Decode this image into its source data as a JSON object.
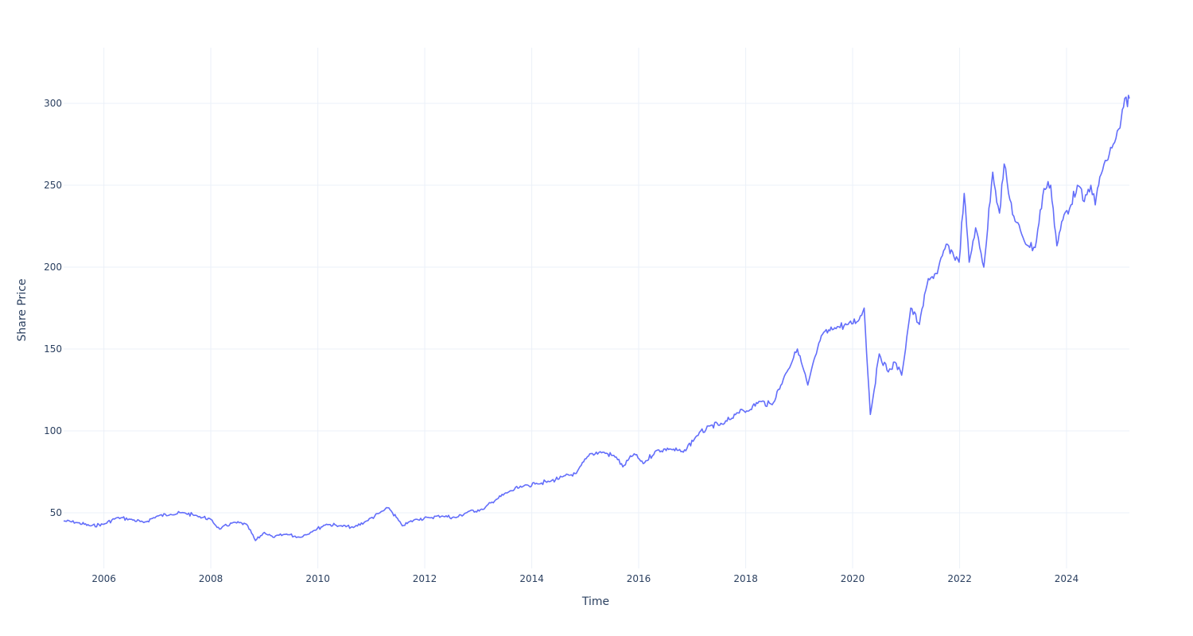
{
  "chart_data": {
    "type": "line",
    "title": "",
    "xlabel": "Time",
    "ylabel": "Share Price",
    "xlim": [
      "2005-04-01",
      "2025-03-05"
    ],
    "ylim": [
      16,
      334
    ],
    "x_ticks": [
      "2006",
      "2008",
      "2010",
      "2012",
      "2014",
      "2016",
      "2018",
      "2020",
      "2022",
      "2024"
    ],
    "y_ticks": [
      50,
      100,
      150,
      200,
      250,
      300
    ],
    "grid": true,
    "legend": "none",
    "line_color": "#636efa",
    "series": [
      {
        "x": [
          "2005-04-01",
          "2005-07-01",
          "2005-10-01",
          "2006-01-01",
          "2006-04-01",
          "2006-07-01",
          "2006-10-01",
          "2007-01-01",
          "2007-04-01",
          "2007-07-01",
          "2007-10-01",
          "2008-01-01",
          "2008-03-01",
          "2008-06-01",
          "2008-09-01",
          "2008-11-01",
          "2009-01-01",
          "2009-03-01",
          "2009-06-01",
          "2009-09-01",
          "2009-12-01",
          "2010-03-01",
          "2010-06-01",
          "2010-09-01",
          "2010-12-01",
          "2011-03-01",
          "2011-05-01",
          "2011-08-01",
          "2011-11-01",
          "2012-02-01",
          "2012-05-01",
          "2012-08-01",
          "2012-11-01",
          "2013-02-01",
          "2013-05-01",
          "2013-08-01",
          "2013-11-01",
          "2014-02-01",
          "2014-05-01",
          "2014-08-01",
          "2014-11-01",
          "2015-02-01",
          "2015-05-01",
          "2015-08-01",
          "2015-09-15",
          "2015-12-01",
          "2016-02-01",
          "2016-05-01",
          "2016-08-01",
          "2016-11-01",
          "2017-02-01",
          "2017-05-01",
          "2017-08-01",
          "2017-11-01",
          "2018-02-01",
          "2018-04-01",
          "2018-07-01",
          "2018-10-01",
          "2018-12-20",
          "2019-03-01",
          "2019-06-01",
          "2019-09-01",
          "2019-12-01",
          "2020-02-15",
          "2020-03-20",
          "2020-05-01",
          "2020-07-01",
          "2020-09-01",
          "2020-10-15",
          "2020-12-01",
          "2021-02-01",
          "2021-04-01",
          "2021-06-01",
          "2021-08-01",
          "2021-10-01",
          "2021-12-28",
          "2022-02-01",
          "2022-03-07",
          "2022-04-20",
          "2022-06-15",
          "2022-08-15",
          "2022-09-30",
          "2022-11-01",
          "2022-12-01",
          "2023-01-15",
          "2023-03-01",
          "2023-04-15",
          "2023-06-01",
          "2023-07-31",
          "2023-09-15",
          "2023-10-27",
          "2023-12-15",
          "2024-01-31",
          "2024-03-15",
          "2024-05-01",
          "2024-06-15",
          "2024-07-15",
          "2024-08-15",
          "2024-10-01",
          "2024-11-15",
          "2024-12-31",
          "2025-02-01",
          "2025-02-20",
          "2025-03-05"
        ],
        "y": [
          45,
          44,
          42,
          43,
          47,
          46,
          44,
          48,
          49,
          50,
          48,
          46,
          40,
          44,
          43,
          33,
          38,
          35,
          37,
          35,
          39,
          43,
          42,
          41,
          45,
          50,
          53,
          42,
          46,
          47,
          48,
          47,
          51,
          52,
          58,
          63,
          66,
          68,
          69,
          72,
          74,
          86,
          87,
          84,
          78,
          86,
          80,
          88,
          89,
          87,
          97,
          103,
          104,
          111,
          113,
          118,
          116,
          135,
          150,
          128,
          158,
          163,
          165,
          168,
          175,
          110,
          147,
          136,
          142,
          134,
          175,
          165,
          193,
          196,
          214,
          203,
          245,
          203,
          224,
          200,
          258,
          233,
          263,
          245,
          228,
          220,
          213,
          212,
          248,
          250,
          213,
          232,
          238,
          250,
          240,
          250,
          238,
          255,
          265,
          275,
          285,
          303,
          298,
          303
        ]
      }
    ]
  }
}
